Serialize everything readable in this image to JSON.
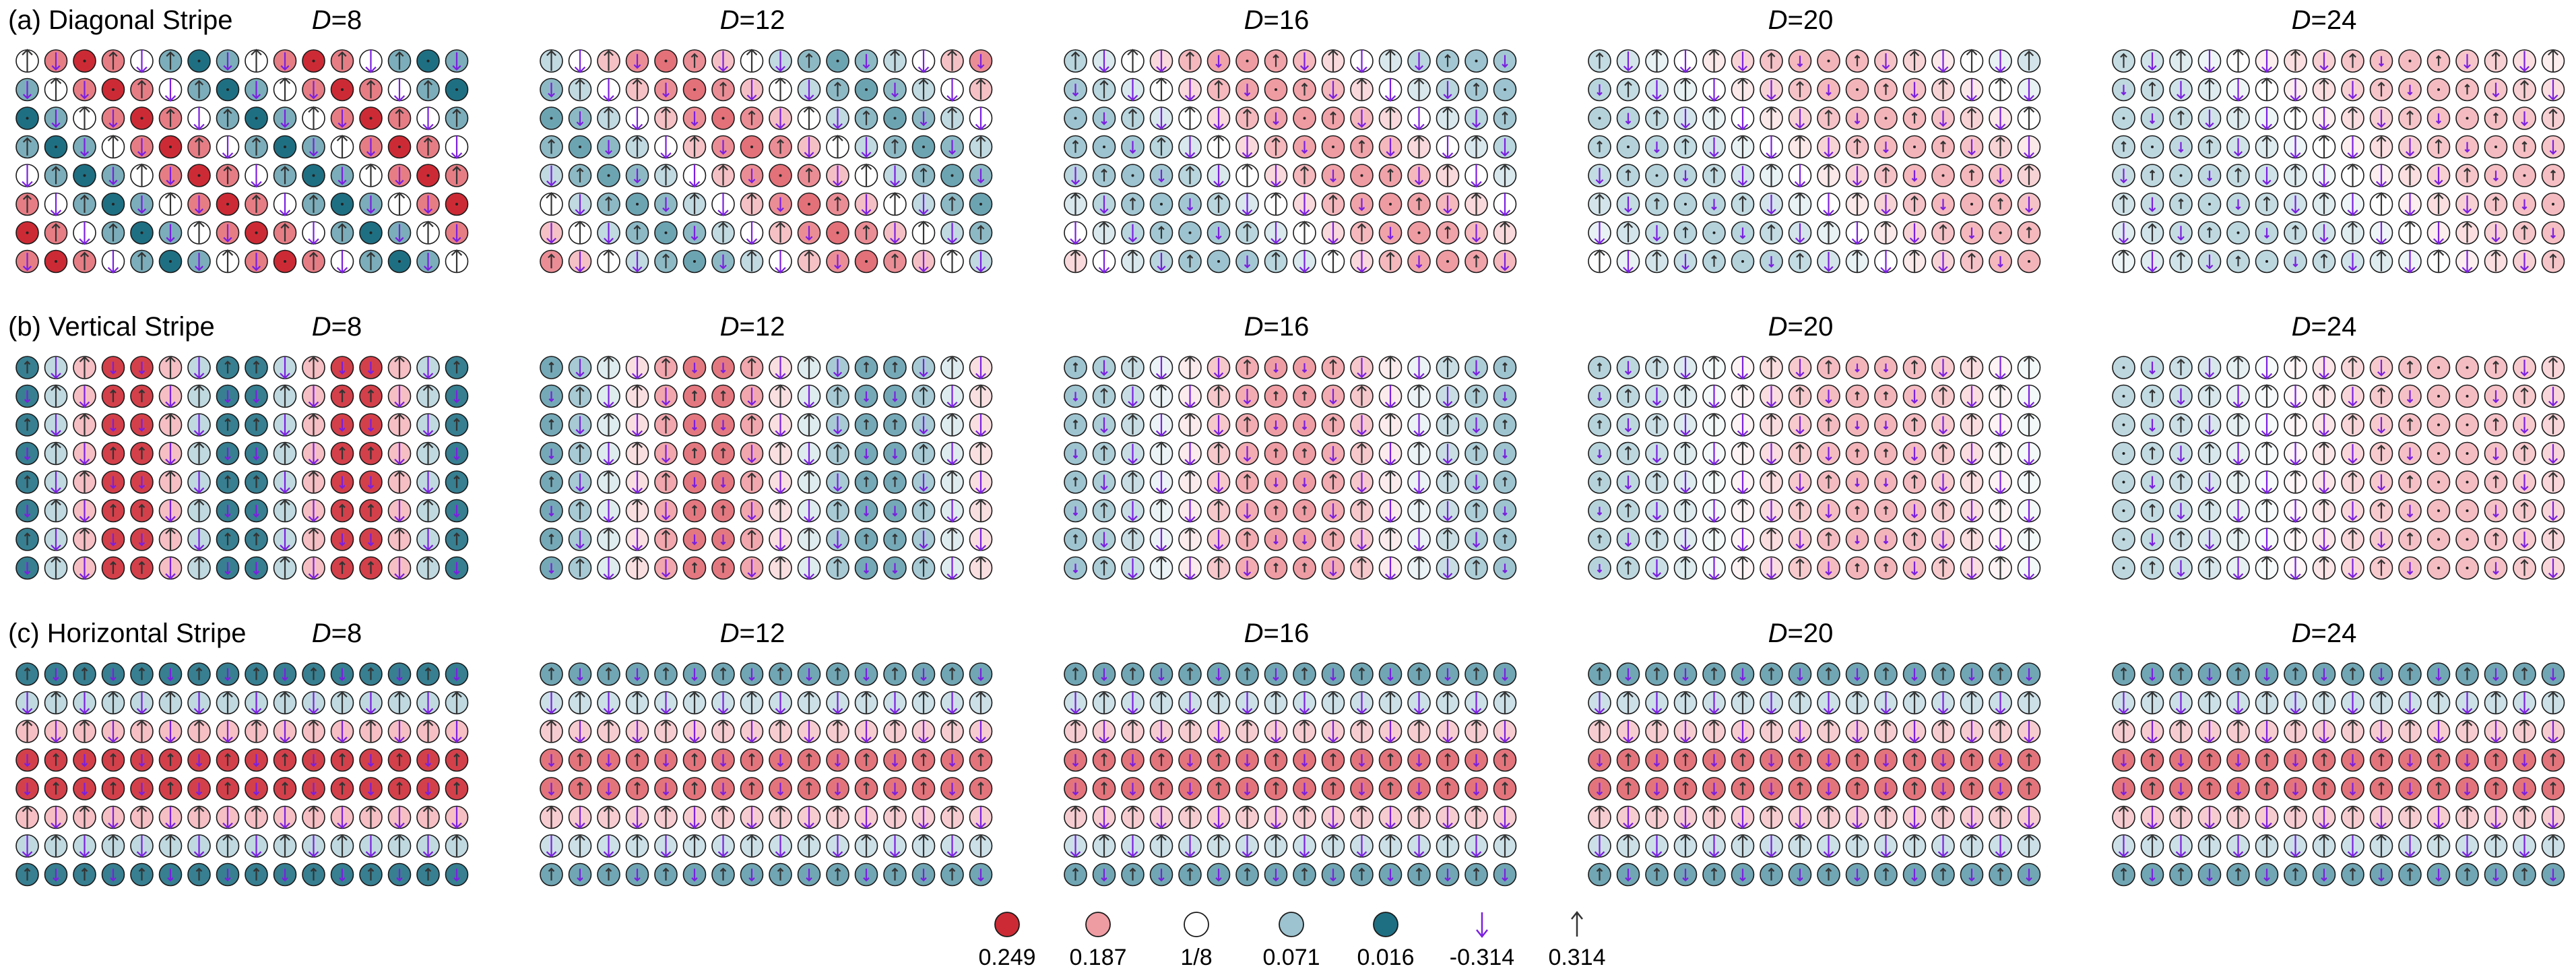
{
  "rows": [
    {
      "label": "(a) Diagonal Stripe",
      "pattern": "diagonal"
    },
    {
      "label": "(b) Vertical Stripe",
      "pattern": "vertical"
    },
    {
      "label": "(c) Horizontal Stripe",
      "pattern": "horizontal"
    }
  ],
  "panels": [
    {
      "d_symbol": "D",
      "d_value": "=8",
      "D": 8
    },
    {
      "d_symbol": "D",
      "d_value": "=12",
      "D": 12
    },
    {
      "d_symbol": "D",
      "d_value": "=16",
      "D": 16
    },
    {
      "d_symbol": "D",
      "d_value": "=20",
      "D": 20
    },
    {
      "d_symbol": "D",
      "d_value": "=24",
      "D": 24
    }
  ],
  "lattice": {
    "columns": 16,
    "rows": 8
  },
  "legend": {
    "items": [
      {
        "label": "0.249",
        "kind": "circle",
        "color": "#cc2b35"
      },
      {
        "label": "0.187",
        "kind": "circle",
        "color": "#ef9ba2"
      },
      {
        "label": "1/8",
        "kind": "circle",
        "color": "#ffffff"
      },
      {
        "label": "0.071",
        "kind": "circle",
        "color": "#9cc3cf"
      },
      {
        "label": "0.016",
        "kind": "circle",
        "color": "#1f6f82"
      },
      {
        "label": "-0.314",
        "kind": "arrow-down",
        "color": "#7b1fe0"
      },
      {
        "label": "0.314",
        "kind": "arrow-up",
        "color": "#333333"
      }
    ]
  },
  "colors": {
    "hole_high": "#cc2b35",
    "hole_mid": "#ef9ba2",
    "hole_avg": "#ffffff",
    "hole_low": "#9cc3cf",
    "hole_min": "#1f6f82",
    "spin_down": "#7b1fe0",
    "spin_up": "#333333"
  }
}
